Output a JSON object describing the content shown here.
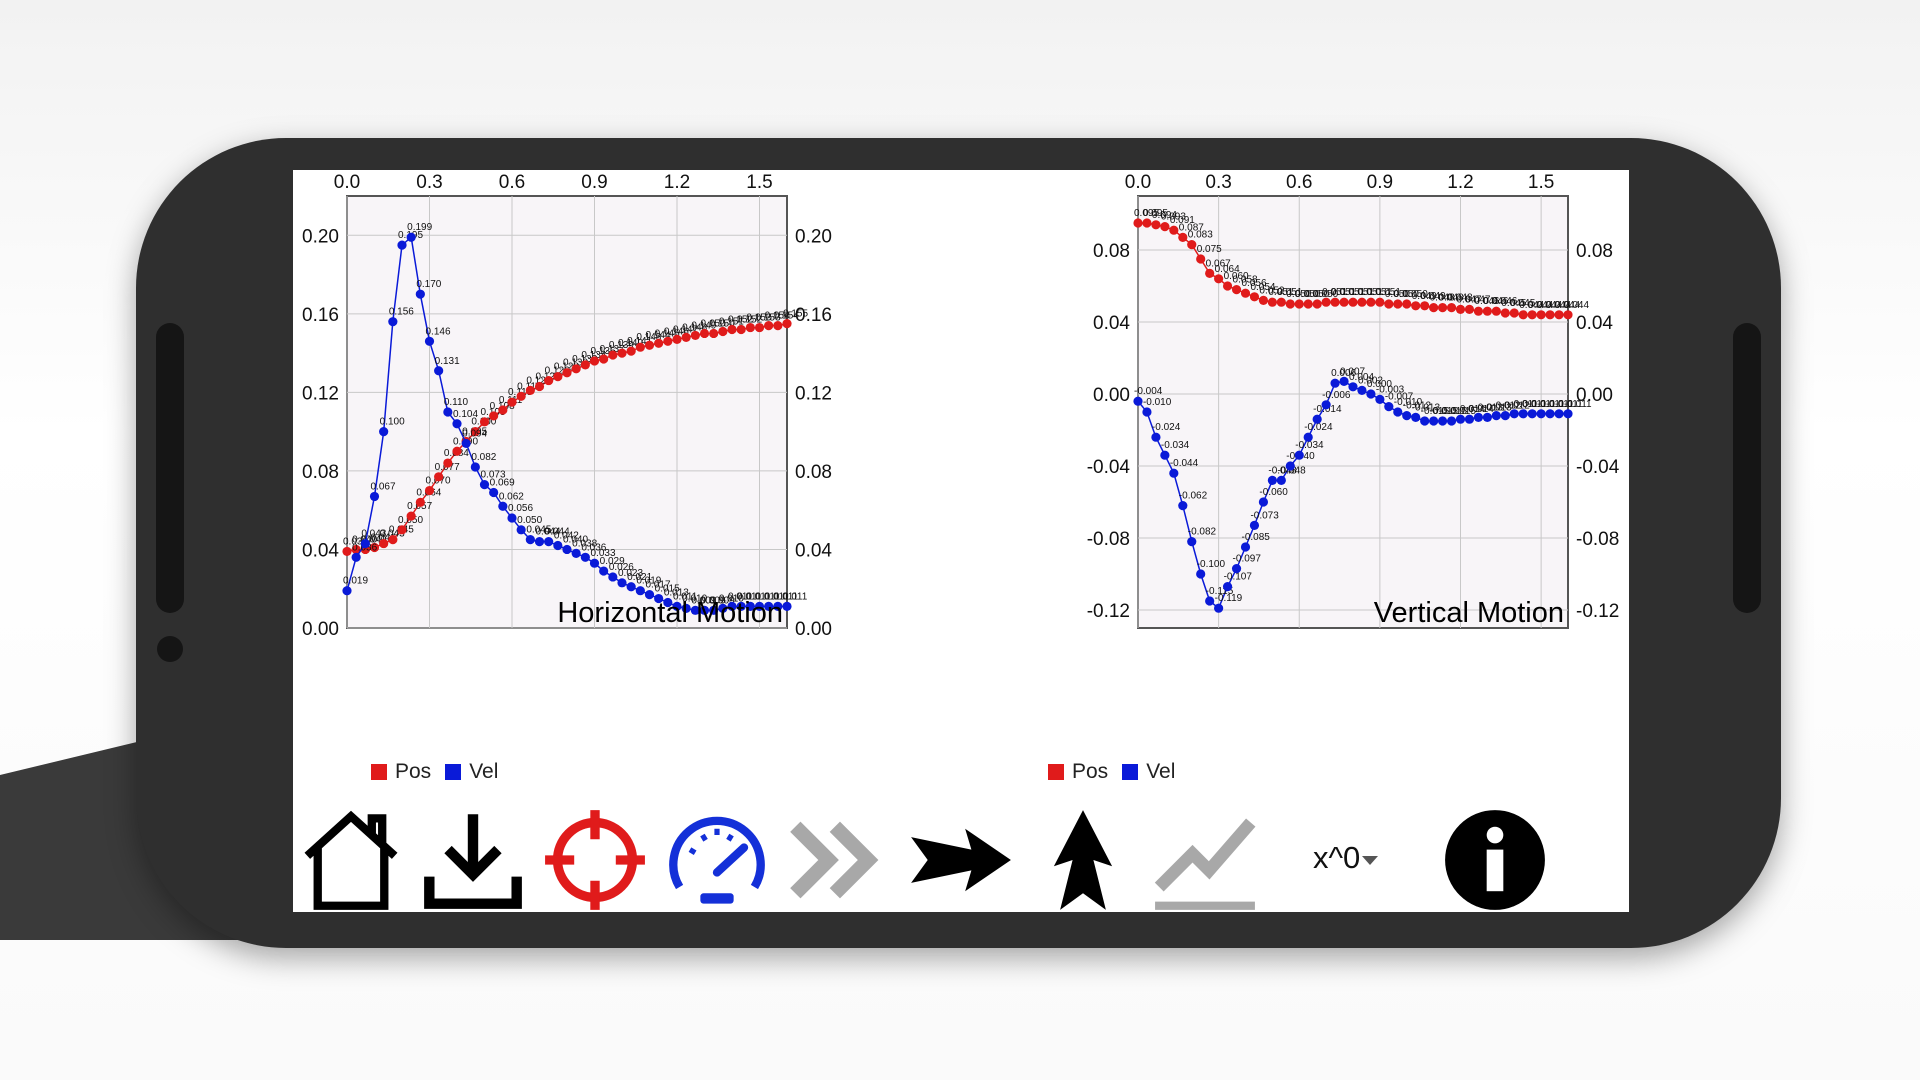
{
  "colors": {
    "pos": "#e01b1b",
    "vel": "#0a1ad8",
    "grid": "#c8c8c8",
    "plot_bg": "#f8f5f8"
  },
  "charts": [
    {
      "title": "Horizontal Motion",
      "x_ticks": [
        "0.0",
        "0.3",
        "0.6",
        "0.9",
        "1.2",
        "1.5"
      ],
      "y_ticks": [
        "0.00",
        "0.04",
        "0.08",
        "0.12",
        "0.16",
        "0.20"
      ],
      "legend": {
        "pos": "Pos",
        "vel": "Vel"
      }
    },
    {
      "title": "Vertical Motion",
      "x_ticks": [
        "0.0",
        "0.3",
        "0.6",
        "0.9",
        "1.2",
        "1.5"
      ],
      "y_ticks": [
        "-0.12",
        "-0.08",
        "-0.04",
        "0.00",
        "0.04",
        "0.08"
      ],
      "legend": {
        "pos": "Pos",
        "vel": "Vel"
      }
    }
  ],
  "chart_data": [
    {
      "type": "line",
      "title": "Horizontal Motion",
      "xlim": [
        0,
        1.6
      ],
      "ylim": [
        0,
        0.22
      ],
      "x": [
        0.0,
        0.0333,
        0.0667,
        0.1,
        0.1333,
        0.1667,
        0.2,
        0.2333,
        0.2667,
        0.3,
        0.3333,
        0.3667,
        0.4,
        0.4333,
        0.4667,
        0.5,
        0.5333,
        0.5667,
        0.6,
        0.6333,
        0.6667,
        0.7,
        0.7333,
        0.7667,
        0.8,
        0.8333,
        0.8667,
        0.9,
        0.9333,
        0.9667,
        1.0,
        1.0333,
        1.0667,
        1.1,
        1.1333,
        1.1667,
        1.2,
        1.2333,
        1.2667,
        1.3,
        1.3333,
        1.3667,
        1.4,
        1.4333,
        1.4667,
        1.5,
        1.5333,
        1.5667,
        1.6
      ],
      "series": [
        {
          "name": "Pos",
          "values": [
            0.039,
            0.04,
            0.04,
            0.041,
            0.043,
            0.045,
            0.05,
            0.057,
            0.064,
            0.07,
            0.077,
            0.084,
            0.09,
            0.095,
            0.1,
            0.105,
            0.108,
            0.111,
            0.115,
            0.118,
            0.121,
            0.123,
            0.126,
            0.128,
            0.13,
            0.132,
            0.134,
            0.136,
            0.137,
            0.139,
            0.14,
            0.141,
            0.143,
            0.144,
            0.145,
            0.146,
            0.147,
            0.148,
            0.149,
            0.15,
            0.15,
            0.151,
            0.152,
            0.152,
            0.153,
            0.153,
            0.154,
            0.154,
            0.155
          ]
        },
        {
          "name": "Vel",
          "values": [
            0.019,
            0.036,
            0.043,
            0.067,
            0.1,
            0.156,
            0.195,
            0.199,
            0.17,
            0.146,
            0.131,
            0.11,
            0.104,
            0.094,
            0.082,
            0.073,
            0.069,
            0.062,
            0.056,
            0.05,
            0.045,
            0.044,
            0.044,
            0.042,
            0.04,
            0.038,
            0.036,
            0.033,
            0.029,
            0.026,
            0.023,
            0.021,
            0.019,
            0.017,
            0.015,
            0.013,
            0.011,
            0.01,
            0.009,
            0.009,
            0.009,
            0.01,
            0.011,
            0.011,
            0.011,
            0.011,
            0.011,
            0.011,
            0.011
          ]
        }
      ]
    },
    {
      "type": "line",
      "title": "Vertical Motion",
      "xlim": [
        0,
        1.6
      ],
      "ylim": [
        -0.13,
        0.11
      ],
      "x": [
        0.0,
        0.0333,
        0.0667,
        0.1,
        0.1333,
        0.1667,
        0.2,
        0.2333,
        0.2667,
        0.3,
        0.3333,
        0.3667,
        0.4,
        0.4333,
        0.4667,
        0.5,
        0.5333,
        0.5667,
        0.6,
        0.6333,
        0.6667,
        0.7,
        0.7333,
        0.7667,
        0.8,
        0.8333,
        0.8667,
        0.9,
        0.9333,
        0.9667,
        1.0,
        1.0333,
        1.0667,
        1.1,
        1.1333,
        1.1667,
        1.2,
        1.2333,
        1.2667,
        1.3,
        1.3333,
        1.3667,
        1.4,
        1.4333,
        1.4667,
        1.5,
        1.5333,
        1.5667,
        1.6
      ],
      "series": [
        {
          "name": "Pos",
          "values": [
            0.095,
            0.095,
            0.094,
            0.093,
            0.091,
            0.087,
            0.083,
            0.075,
            0.067,
            0.064,
            0.06,
            0.058,
            0.056,
            0.054,
            0.052,
            0.051,
            0.051,
            0.05,
            0.05,
            0.05,
            0.05,
            0.051,
            0.051,
            0.051,
            0.051,
            0.051,
            0.051,
            0.051,
            0.05,
            0.05,
            0.05,
            0.049,
            0.049,
            0.048,
            0.048,
            0.048,
            0.047,
            0.047,
            0.046,
            0.046,
            0.046,
            0.045,
            0.045,
            0.044,
            0.044,
            0.044,
            0.044,
            0.044,
            0.044
          ]
        },
        {
          "name": "Vel",
          "values": [
            -0.004,
            -0.01,
            -0.024,
            -0.034,
            -0.044,
            -0.062,
            -0.082,
            -0.1,
            -0.115,
            -0.119,
            -0.107,
            -0.097,
            -0.085,
            -0.073,
            -0.06,
            -0.048,
            -0.048,
            -0.04,
            -0.034,
            -0.024,
            -0.014,
            -0.006,
            0.006,
            0.007,
            0.004,
            0.002,
            0.0,
            -0.003,
            -0.007,
            -0.01,
            -0.012,
            -0.013,
            -0.015,
            -0.015,
            -0.015,
            -0.015,
            -0.014,
            -0.014,
            -0.013,
            -0.013,
            -0.012,
            -0.012,
            -0.011,
            -0.011,
            -0.011,
            -0.011,
            -0.011,
            -0.011,
            -0.011
          ]
        }
      ]
    }
  ],
  "toolbar": {
    "buttons": [
      {
        "name": "home-icon"
      },
      {
        "name": "download-icon"
      },
      {
        "name": "target-icon"
      },
      {
        "name": "speedometer-icon"
      },
      {
        "name": "fast-forward-icon"
      },
      {
        "name": "arrow-right-icon"
      },
      {
        "name": "arrow-up-icon"
      },
      {
        "name": "trend-chart-icon"
      },
      {
        "name": "info-icon"
      }
    ],
    "exponent_select": "x^0"
  }
}
